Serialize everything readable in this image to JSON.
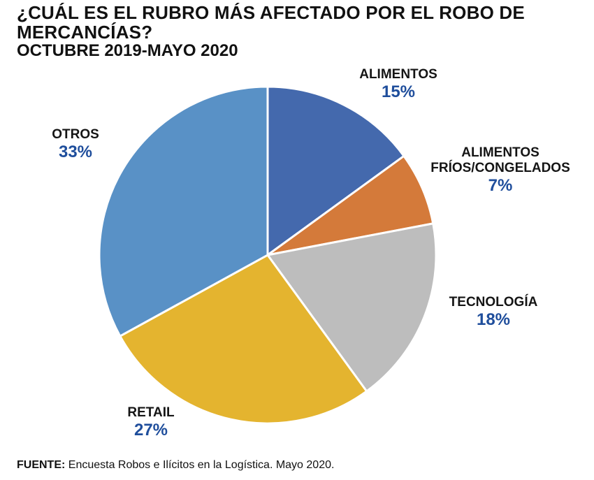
{
  "header": {
    "title": "¿CUÁL ES EL RUBRO MÁS AFECTADO POR EL ROBO DE MERCANCÍAS?",
    "subtitle": "OCTUBRE 2019-MAYO 2020"
  },
  "chart_data": {
    "type": "pie",
    "title": "¿CUÁL ES EL RUBRO MÁS AFECTADO POR EL ROBO DE MERCANCÍAS?",
    "subtitle": "OCTUBRE 2019-MAYO 2020",
    "slices": [
      {
        "label": "ALIMENTOS",
        "value": 15,
        "display": "15%",
        "color": "#4469ad"
      },
      {
        "label": "ALIMENTOS FRÍOS/CONGELADOS",
        "value": 7,
        "display": "7%",
        "color": "#d47a3a"
      },
      {
        "label": "TECNOLOGÍA",
        "value": 18,
        "display": "18%",
        "color": "#bdbdbd"
      },
      {
        "label": "RETAIL",
        "value": 27,
        "display": "27%",
        "color": "#e4b42f"
      },
      {
        "label": "OTROS",
        "value": 33,
        "display": "33%",
        "color": "#5991c6"
      }
    ],
    "start": "12 o'clock",
    "direction": "clockwise",
    "label_color": "#1f4e9c"
  },
  "labels": {
    "alimentos": {
      "name": "ALIMENTOS",
      "pct": "15%"
    },
    "frios": {
      "name1": "ALIMENTOS",
      "name2": "FRÍOS/CONGELADOS",
      "pct": "7%"
    },
    "tecnologia": {
      "name": "TECNOLOGÍA",
      "pct": "18%"
    },
    "retail": {
      "name": "RETAIL",
      "pct": "27%"
    },
    "otros": {
      "name": "OTROS",
      "pct": "33%"
    }
  },
  "footer": {
    "source_key": "FUENTE:",
    "source_text": " Encuesta Robos e Ilícitos en la Logística. Mayo 2020."
  }
}
